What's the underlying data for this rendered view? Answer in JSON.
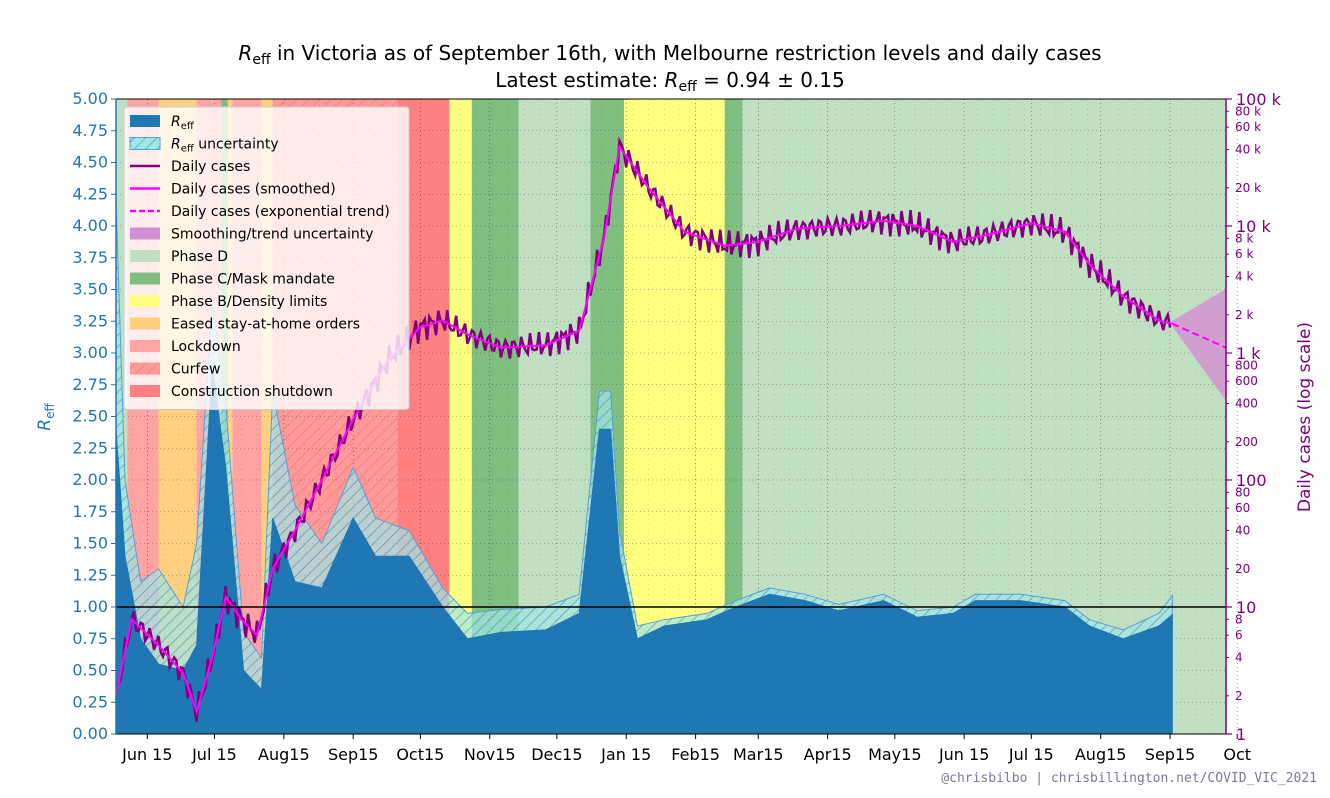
{
  "title": {
    "line1_symbol": "R",
    "line1_sub": "eff",
    "line1_text": " in Victoria as of September 16th, with Melbourne restriction levels and daily cases",
    "line2_prefix": "Latest estimate: ",
    "line2_symbol": "R",
    "line2_sub": "eff",
    "line2_value": " = 0.94 ± 0.15"
  },
  "credit": "@chrisbilbo | chrisbillington.net/COVID_VIC_2021",
  "colors": {
    "reff": "#1f77b4",
    "reff_uncertainty": "#9fe6e6",
    "daily": "#800080",
    "smoothed": "#ff00ff",
    "trend_uncertainty": "#d38fd3",
    "phase_d": "#c1dfc1",
    "phase_c": "#80bf80",
    "phase_b": "#ffff80",
    "eased": "#ffd080",
    "lockdown": "#ffa3a3",
    "curfew": "#ff9a9a",
    "construction": "#ff8080"
  },
  "chart_data": {
    "type": "line",
    "x_axis": {
      "tick_labels": [
        "Jun 15",
        "Jul 15",
        "Aug15",
        "Sep15",
        "Oct15",
        "Nov15",
        "Dec15",
        "Jan 15",
        "Feb15",
        "Mar15",
        "Apr15",
        "May15",
        "Jun 15",
        "Jul 15",
        "Aug15",
        "Sep15",
        "Oct"
      ],
      "start": "2020-06-01",
      "end": "2021-10-10"
    },
    "y_left": {
      "label_symbol": "R",
      "label_sub": "eff",
      "ylim": [
        0,
        5
      ],
      "ticks": [
        "0.00",
        "0.25",
        "0.50",
        "0.75",
        "1.00",
        "1.25",
        "1.50",
        "1.75",
        "2.00",
        "2.25",
        "2.50",
        "2.75",
        "3.00",
        "3.25",
        "3.50",
        "3.75",
        "4.00",
        "4.25",
        "4.50",
        "4.75",
        "5.00"
      ]
    },
    "y_right": {
      "label": "Daily cases (log scale)",
      "scale": "log",
      "ylim": [
        1,
        100000
      ],
      "major_ticks": [
        {
          "value": 1,
          "label": "1"
        },
        {
          "value": 10,
          "label": "10"
        },
        {
          "value": 100,
          "label": "100"
        },
        {
          "value": 1000,
          "label": "1 k"
        },
        {
          "value": 10000,
          "label": "10 k"
        },
        {
          "value": 100000,
          "label": "100 k"
        }
      ],
      "minor_ticks": [
        {
          "value": 2,
          "label": "2"
        },
        {
          "value": 4,
          "label": "4"
        },
        {
          "value": 6,
          "label": "6"
        },
        {
          "value": 8,
          "label": "8"
        },
        {
          "value": 20,
          "label": "20"
        },
        {
          "value": 40,
          "label": "40"
        },
        {
          "value": 60,
          "label": "60"
        },
        {
          "value": 80,
          "label": "80"
        },
        {
          "value": 200,
          "label": "200"
        },
        {
          "value": 400,
          "label": "400"
        },
        {
          "value": 600,
          "label": "600"
        },
        {
          "value": 800,
          "label": "800"
        },
        {
          "value": 2000,
          "label": "2 k"
        },
        {
          "value": 4000,
          "label": "4 k"
        },
        {
          "value": 6000,
          "label": "6 k"
        },
        {
          "value": 8000,
          "label": "8 k"
        },
        {
          "value": 20000,
          "label": "20 k"
        },
        {
          "value": 40000,
          "label": "40 k"
        },
        {
          "value": 60000,
          "label": "60 k"
        },
        {
          "value": 80000,
          "label": "80 k"
        }
      ]
    },
    "reference_line": {
      "y": 1.0,
      "color": "#000000"
    },
    "phases": [
      {
        "kind": "phase_d",
        "start": "2020-06-01",
        "end": "2020-06-06"
      },
      {
        "kind": "lockdown",
        "start": "2020-06-06",
        "end": "2020-06-20"
      },
      {
        "kind": "eased",
        "start": "2020-06-20",
        "end": "2020-07-07"
      },
      {
        "kind": "lockdown",
        "start": "2020-07-07",
        "end": "2020-07-18"
      },
      {
        "kind": "phase_c",
        "start": "2020-07-18",
        "end": "2020-07-21"
      },
      {
        "kind": "eased",
        "start": "2020-07-21",
        "end": "2020-07-23"
      },
      {
        "kind": "lockdown",
        "start": "2020-07-23",
        "end": "2020-08-05"
      },
      {
        "kind": "eased",
        "start": "2020-08-05",
        "end": "2020-08-10"
      },
      {
        "kind": "curfew",
        "start": "2020-08-10",
        "end": "2020-10-05"
      },
      {
        "kind": "construction",
        "start": "2020-10-05",
        "end": "2020-10-28"
      },
      {
        "kind": "phase_b",
        "start": "2020-10-28",
        "end": "2020-11-07"
      },
      {
        "kind": "phase_c",
        "start": "2020-11-07",
        "end": "2020-11-28"
      },
      {
        "kind": "phase_d",
        "start": "2020-11-28",
        "end": "2020-12-30"
      },
      {
        "kind": "phase_c",
        "start": "2020-12-30",
        "end": "2021-01-14"
      },
      {
        "kind": "phase_b",
        "start": "2021-01-14",
        "end": "2021-02-28"
      },
      {
        "kind": "phase_c",
        "start": "2021-02-28",
        "end": "2021-03-08"
      },
      {
        "kind": "phase_d",
        "start": "2021-03-08",
        "end": "2021-10-10"
      }
    ],
    "series": [
      {
        "name": "R_eff",
        "kind": "area",
        "points": [
          [
            "2020-06-01",
            2.4
          ],
          [
            "2020-06-05",
            1.4
          ],
          [
            "2020-06-12",
            0.75
          ],
          [
            "2020-06-20",
            0.55
          ],
          [
            "2020-07-01",
            0.5
          ],
          [
            "2020-07-07",
            0.7
          ],
          [
            "2020-07-14",
            2.9
          ],
          [
            "2020-07-20",
            2.1
          ],
          [
            "2020-07-28",
            0.5
          ],
          [
            "2020-08-05",
            0.35
          ],
          [
            "2020-08-10",
            1.7
          ],
          [
            "2020-08-20",
            1.2
          ],
          [
            "2020-09-01",
            1.15
          ],
          [
            "2020-09-15",
            1.7
          ],
          [
            "2020-09-25",
            1.4
          ],
          [
            "2020-10-10",
            1.4
          ],
          [
            "2020-10-25",
            1.0
          ],
          [
            "2020-11-05",
            0.75
          ],
          [
            "2020-11-20",
            0.8
          ],
          [
            "2020-12-10",
            0.82
          ],
          [
            "2020-12-25",
            0.95
          ],
          [
            "2021-01-03",
            2.4
          ],
          [
            "2021-01-08",
            2.4
          ],
          [
            "2021-01-12",
            1.4
          ],
          [
            "2021-01-20",
            0.75
          ],
          [
            "2021-02-01",
            0.85
          ],
          [
            "2021-02-20",
            0.9
          ],
          [
            "2021-03-05",
            1.0
          ],
          [
            "2021-03-20",
            1.1
          ],
          [
            "2021-04-05",
            1.05
          ],
          [
            "2021-04-20",
            0.97
          ],
          [
            "2021-05-10",
            1.05
          ],
          [
            "2021-05-25",
            0.92
          ],
          [
            "2021-06-10",
            0.95
          ],
          [
            "2021-06-20",
            1.05
          ],
          [
            "2021-07-10",
            1.05
          ],
          [
            "2021-07-30",
            1.0
          ],
          [
            "2021-08-10",
            0.85
          ],
          [
            "2021-08-25",
            0.75
          ],
          [
            "2021-09-10",
            0.85
          ],
          [
            "2021-09-16",
            0.94
          ]
        ]
      },
      {
        "name": "R_eff uncertainty",
        "kind": "band",
        "points": [
          [
            "2020-06-01",
            1.8,
            4.2
          ],
          [
            "2020-06-05",
            0.9,
            2.0
          ],
          [
            "2020-06-12",
            0.4,
            1.2
          ],
          [
            "2020-06-20",
            0.4,
            1.3
          ],
          [
            "2020-07-01",
            0.3,
            1.0
          ],
          [
            "2020-07-07",
            0.5,
            1.5
          ],
          [
            "2020-07-14",
            2.4,
            3.4
          ],
          [
            "2020-07-20",
            1.5,
            2.6
          ],
          [
            "2020-07-28",
            0.2,
            0.8
          ],
          [
            "2020-08-05",
            0.2,
            0.6
          ],
          [
            "2020-08-10",
            1.2,
            2.7
          ],
          [
            "2020-08-20",
            0.9,
            1.8
          ],
          [
            "2020-09-01",
            0.9,
            1.5
          ],
          [
            "2020-09-15",
            1.4,
            2.1
          ],
          [
            "2020-09-25",
            1.2,
            1.7
          ],
          [
            "2020-10-10",
            1.25,
            1.6
          ],
          [
            "2020-10-25",
            0.9,
            1.15
          ],
          [
            "2020-11-05",
            0.65,
            0.95
          ],
          [
            "2020-11-20",
            0.68,
            0.98
          ],
          [
            "2020-12-10",
            0.7,
            1.0
          ],
          [
            "2020-12-25",
            0.85,
            1.1
          ],
          [
            "2021-01-03",
            2.2,
            2.7
          ],
          [
            "2021-01-08",
            2.2,
            2.7
          ],
          [
            "2021-01-12",
            1.25,
            1.6
          ],
          [
            "2021-01-20",
            0.68,
            0.85
          ],
          [
            "2021-02-01",
            0.8,
            0.9
          ],
          [
            "2021-02-20",
            0.85,
            0.95
          ],
          [
            "2021-03-05",
            0.95,
            1.05
          ],
          [
            "2021-03-20",
            1.05,
            1.15
          ],
          [
            "2021-04-05",
            1.0,
            1.1
          ],
          [
            "2021-04-20",
            0.92,
            1.02
          ],
          [
            "2021-05-10",
            1.0,
            1.1
          ],
          [
            "2021-05-25",
            0.87,
            0.97
          ],
          [
            "2021-06-10",
            0.9,
            1.0
          ],
          [
            "2021-06-20",
            1.0,
            1.1
          ],
          [
            "2021-07-10",
            1.0,
            1.1
          ],
          [
            "2021-07-30",
            0.95,
            1.05
          ],
          [
            "2021-08-10",
            0.8,
            0.9
          ],
          [
            "2021-08-25",
            0.7,
            0.82
          ],
          [
            "2021-09-10",
            0.75,
            0.95
          ],
          [
            "2021-09-16",
            0.79,
            1.09
          ]
        ]
      },
      {
        "name": "Daily cases (smoothed)",
        "kind": "line",
        "axis": "right",
        "points": [
          [
            "2020-06-01",
            2
          ],
          [
            "2020-06-08",
            8
          ],
          [
            "2020-06-20",
            5
          ],
          [
            "2020-07-01",
            3
          ],
          [
            "2020-07-07",
            1.5
          ],
          [
            "2020-07-14",
            4
          ],
          [
            "2020-07-20",
            12
          ],
          [
            "2020-07-27",
            8
          ],
          [
            "2020-08-03",
            6
          ],
          [
            "2020-08-10",
            20
          ],
          [
            "2020-08-20",
            40
          ],
          [
            "2020-09-01",
            100
          ],
          [
            "2020-09-15",
            300
          ],
          [
            "2020-10-01",
            900
          ],
          [
            "2020-10-15",
            1600
          ],
          [
            "2020-10-25",
            1800
          ],
          [
            "2020-11-05",
            1400
          ],
          [
            "2020-11-20",
            1100
          ],
          [
            "2020-12-10",
            1150
          ],
          [
            "2020-12-25",
            1500
          ],
          [
            "2021-01-05",
            8000
          ],
          [
            "2021-01-12",
            42000
          ],
          [
            "2021-01-25",
            20000
          ],
          [
            "2021-02-10",
            9000
          ],
          [
            "2021-02-28",
            7000
          ],
          [
            "2021-03-15",
            7500
          ],
          [
            "2021-04-01",
            9500
          ],
          [
            "2021-04-20",
            10000
          ],
          [
            "2021-05-10",
            11000
          ],
          [
            "2021-05-25",
            10000
          ],
          [
            "2021-06-10",
            7500
          ],
          [
            "2021-06-25",
            8500
          ],
          [
            "2021-07-15",
            10500
          ],
          [
            "2021-07-30",
            9000
          ],
          [
            "2021-08-10",
            5000
          ],
          [
            "2021-08-25",
            2800
          ],
          [
            "2021-09-10",
            1800
          ],
          [
            "2021-09-16",
            1700
          ]
        ]
      },
      {
        "name": "Daily cases (exponential trend)",
        "kind": "line",
        "axis": "right",
        "points": [
          [
            "2021-09-16",
            1700
          ],
          [
            "2021-10-10",
            1100
          ]
        ]
      }
    ],
    "legend": {
      "placement": "upper-left",
      "entries": [
        {
          "label_symbol": "R",
          "label_sub": "eff",
          "label_rest": "",
          "kind": "patch",
          "color_key": "reff"
        },
        {
          "label_symbol": "R",
          "label_sub": "eff",
          "label_rest": " uncertainty",
          "kind": "hatch",
          "color_key": "reff_uncertainty"
        },
        {
          "label": "Daily cases",
          "kind": "line",
          "color_key": "daily"
        },
        {
          "label": "Daily cases (smoothed)",
          "kind": "line",
          "color_key": "smoothed"
        },
        {
          "label": "Daily cases (exponential trend)",
          "kind": "dashed",
          "color_key": "smoothed"
        },
        {
          "label": "Smoothing/trend uncertainty",
          "kind": "patch",
          "color_key": "trend_uncertainty"
        },
        {
          "label": "Phase D",
          "kind": "patch",
          "color_key": "phase_d"
        },
        {
          "label": "Phase C/Mask mandate",
          "kind": "patch",
          "color_key": "phase_c"
        },
        {
          "label": "Phase B/Density limits",
          "kind": "patch",
          "color_key": "phase_b"
        },
        {
          "label": "Eased stay-at-home orders",
          "kind": "patch",
          "color_key": "eased"
        },
        {
          "label": "Lockdown",
          "kind": "patch",
          "color_key": "lockdown"
        },
        {
          "label": "Curfew",
          "kind": "hatch",
          "color_key": "curfew"
        },
        {
          "label": "Construction shutdown",
          "kind": "patch",
          "color_key": "construction"
        }
      ]
    }
  }
}
